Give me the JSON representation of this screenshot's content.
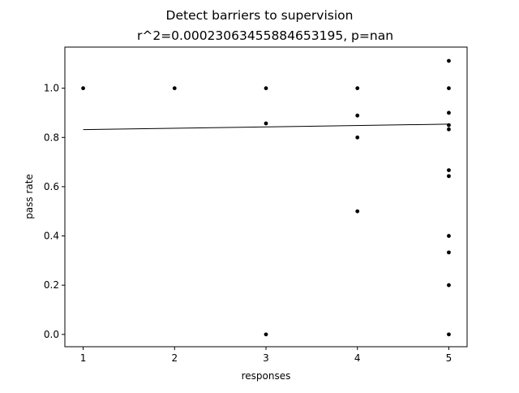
{
  "chart_data": {
    "type": "scatter",
    "title": "Detect barriers to supervision",
    "subtitle": "r^2=0.00023063455884653195, p=nan",
    "xlabel": "responses",
    "ylabel": "pass rate",
    "xlim": [
      0.8,
      5.2
    ],
    "ylim": [
      -0.05,
      1.167
    ],
    "xticks": [
      1,
      2,
      3,
      4,
      5
    ],
    "xtick_labels": [
      "1",
      "2",
      "3",
      "4",
      "5"
    ],
    "yticks": [
      0.0,
      0.2,
      0.4,
      0.6,
      0.8,
      1.0
    ],
    "ytick_labels": [
      "0.0",
      "0.2",
      "0.4",
      "0.6",
      "0.8",
      "1.0"
    ],
    "grid": false,
    "marker_color": "#000000",
    "line_color": "#000000",
    "points": [
      {
        "x": 1,
        "y": 1.0
      },
      {
        "x": 2,
        "y": 1.0
      },
      {
        "x": 3,
        "y": 1.0
      },
      {
        "x": 3,
        "y": 0.857
      },
      {
        "x": 3,
        "y": 0.0
      },
      {
        "x": 4,
        "y": 1.0
      },
      {
        "x": 4,
        "y": 0.889
      },
      {
        "x": 4,
        "y": 0.8
      },
      {
        "x": 4,
        "y": 0.5
      },
      {
        "x": 5,
        "y": 1.111
      },
      {
        "x": 5,
        "y": 1.0
      },
      {
        "x": 5,
        "y": 0.9
      },
      {
        "x": 5,
        "y": 0.85
      },
      {
        "x": 5,
        "y": 0.833
      },
      {
        "x": 5,
        "y": 0.667
      },
      {
        "x": 5,
        "y": 0.643
      },
      {
        "x": 5,
        "y": 0.4
      },
      {
        "x": 5,
        "y": 0.333
      },
      {
        "x": 5,
        "y": 0.2
      },
      {
        "x": 5,
        "y": 0.0
      }
    ],
    "fit_line": {
      "x": [
        1,
        5
      ],
      "y": [
        0.832,
        0.854
      ]
    }
  }
}
